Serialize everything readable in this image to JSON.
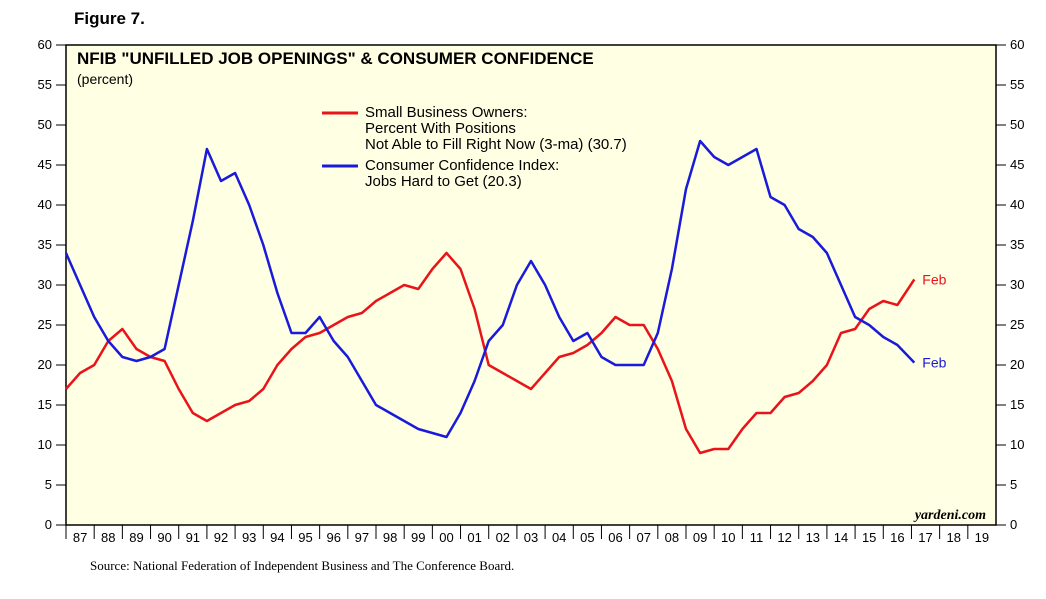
{
  "chart_data": {
    "type": "line",
    "figure_label": "Figure 7.",
    "title": "NFIB \"UNFILLED JOB OPENINGS\" & CONSUMER CONFIDENCE",
    "subtitle": "(percent)",
    "source": "Source: National Federation of Independent Business and The Conference Board.",
    "watermark": "yardeni.com",
    "end_labels": [
      "Feb",
      "Feb"
    ],
    "x": [
      1987.0,
      1987.5,
      1988.0,
      1988.5,
      1989.0,
      1989.5,
      1990.0,
      1990.5,
      1991.0,
      1991.5,
      1992.0,
      1992.5,
      1993.0,
      1993.5,
      1994.0,
      1994.5,
      1995.0,
      1995.5,
      1996.0,
      1996.5,
      1997.0,
      1997.5,
      1998.0,
      1998.5,
      1999.0,
      1999.5,
      2000.0,
      2000.5,
      2001.0,
      2001.5,
      2002.0,
      2002.5,
      2003.0,
      2003.5,
      2004.0,
      2004.5,
      2005.0,
      2005.5,
      2006.0,
      2006.5,
      2007.0,
      2007.5,
      2008.0,
      2008.5,
      2009.0,
      2009.5,
      2010.0,
      2010.5,
      2011.0,
      2011.5,
      2012.0,
      2012.5,
      2013.0,
      2013.5,
      2014.0,
      2014.5,
      2015.0,
      2015.5,
      2016.0,
      2016.5,
      2017.1
    ],
    "series": [
      {
        "name": "Small Business Owners:\nPercent With Positions\nNot Able to Fill Right Now (3-ma) (30.7)",
        "color": "#e8141a",
        "values": [
          17,
          19,
          20,
          23,
          24.5,
          22,
          21,
          20.5,
          17,
          14,
          13,
          14,
          15,
          15.5,
          17,
          20,
          22,
          23.5,
          24,
          25,
          26,
          26.5,
          28,
          29,
          30,
          29.5,
          32,
          34,
          32,
          27,
          20,
          19,
          18,
          17,
          19,
          21,
          21.5,
          22.5,
          24,
          26,
          25,
          25,
          22,
          18,
          12,
          9,
          9.5,
          9.5,
          12,
          14,
          14,
          16,
          16.5,
          18,
          20,
          24,
          24.5,
          27,
          28,
          27.5,
          30.7
        ]
      },
      {
        "name": "Consumer Confidence Index:\nJobs Hard to Get (20.3)",
        "color": "#1a1adb",
        "values": [
          34,
          30,
          26,
          23,
          21,
          20.5,
          21,
          22,
          30,
          38,
          47,
          43,
          44,
          40,
          35,
          29,
          24,
          24,
          26,
          23,
          21,
          18,
          15,
          14,
          13,
          12,
          11.5,
          11,
          14,
          18,
          23,
          25,
          30,
          33,
          30,
          26,
          23,
          24,
          21,
          20,
          20,
          20,
          24,
          32,
          42,
          48,
          46,
          45,
          46,
          47,
          41,
          40,
          37,
          36,
          34,
          30,
          26,
          25,
          23.5,
          22.5,
          20.3
        ]
      }
    ],
    "xlim": [
      1987,
      2020
    ],
    "xticks": [
      {
        "value": 1987,
        "label": "87"
      },
      {
        "value": 1988,
        "label": "88"
      },
      {
        "value": 1989,
        "label": "89"
      },
      {
        "value": 1990,
        "label": "90"
      },
      {
        "value": 1991,
        "label": "91"
      },
      {
        "value": 1992,
        "label": "92"
      },
      {
        "value": 1993,
        "label": "93"
      },
      {
        "value": 1994,
        "label": "94"
      },
      {
        "value": 1995,
        "label": "95"
      },
      {
        "value": 1996,
        "label": "96"
      },
      {
        "value": 1997,
        "label": "97"
      },
      {
        "value": 1998,
        "label": "98"
      },
      {
        "value": 1999,
        "label": "99"
      },
      {
        "value": 2000,
        "label": "00"
      },
      {
        "value": 2001,
        "label": "01"
      },
      {
        "value": 2002,
        "label": "02"
      },
      {
        "value": 2003,
        "label": "03"
      },
      {
        "value": 2004,
        "label": "04"
      },
      {
        "value": 2005,
        "label": "05"
      },
      {
        "value": 2006,
        "label": "06"
      },
      {
        "value": 2007,
        "label": "07"
      },
      {
        "value": 2008,
        "label": "08"
      },
      {
        "value": 2009,
        "label": "09"
      },
      {
        "value": 2010,
        "label": "10"
      },
      {
        "value": 2011,
        "label": "11"
      },
      {
        "value": 2012,
        "label": "12"
      },
      {
        "value": 2013,
        "label": "13"
      },
      {
        "value": 2014,
        "label": "14"
      },
      {
        "value": 2015,
        "label": "15"
      },
      {
        "value": 2016,
        "label": "16"
      },
      {
        "value": 2017,
        "label": "17"
      },
      {
        "value": 2018,
        "label": "18"
      },
      {
        "value": 2019,
        "label": "19"
      }
    ],
    "ylim": [
      0,
      60
    ],
    "yticks": [
      0,
      5,
      10,
      15,
      20,
      25,
      30,
      35,
      40,
      45,
      50,
      55,
      60
    ],
    "plot_background": "#ffffe4"
  }
}
